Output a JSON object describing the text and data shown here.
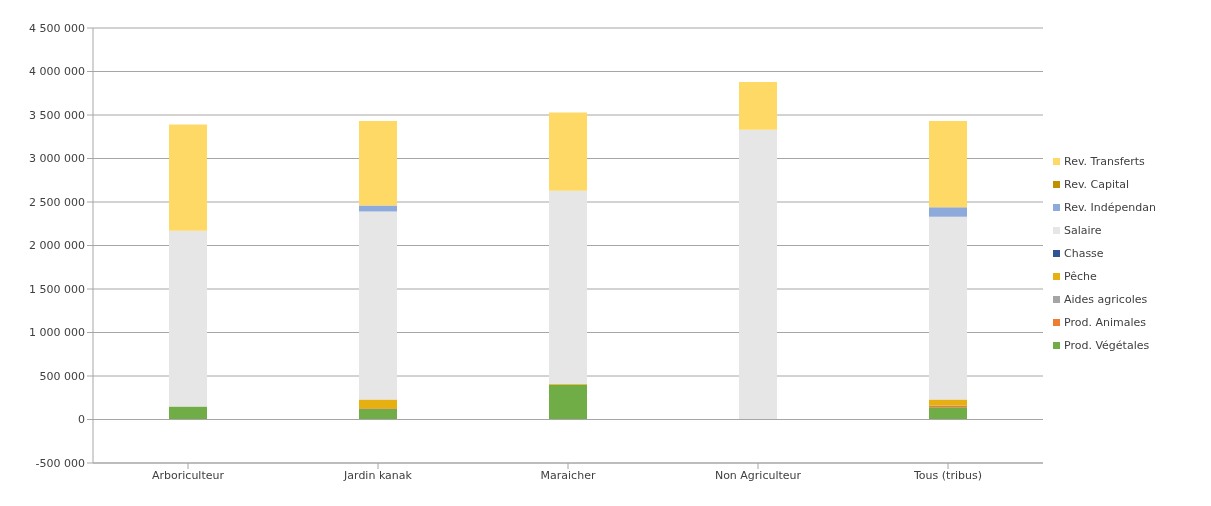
{
  "chart_data": {
    "type": "bar",
    "stacked": true,
    "categories": [
      "Arboriculteur",
      "Jardin kanak",
      "Maraicher",
      "Non Agriculteur",
      "Tous (tribus)"
    ],
    "series": [
      {
        "name": "Prod. Végétales",
        "color": "#70ad47",
        "values": [
          150000,
          120000,
          400000,
          0,
          140000
        ]
      },
      {
        "name": "Prod. Animales",
        "color": "#ed7d31",
        "values": [
          0,
          10000,
          0,
          0,
          20000
        ]
      },
      {
        "name": "Aides agricoles",
        "color": "#a5a5a5",
        "values": [
          0,
          0,
          0,
          0,
          0
        ]
      },
      {
        "name": "Pêche",
        "color": "#e6b012",
        "values": [
          0,
          100000,
          10000,
          0,
          70000
        ]
      },
      {
        "name": "Chasse",
        "color": "#2f5597",
        "values": [
          0,
          0,
          0,
          0,
          0
        ]
      },
      {
        "name": "Salaire",
        "color": "#e7e6e6",
        "values": [
          2020000,
          2160000,
          2220000,
          3330000,
          2100000
        ]
      },
      {
        "name": "Rev. Indépendan",
        "color": "#8eaadb",
        "values": [
          0,
          70000,
          0,
          0,
          110000
        ]
      },
      {
        "name": "Rev. Capital",
        "color": "#bf9000",
        "values": [
          0,
          0,
          0,
          0,
          0
        ]
      },
      {
        "name": "Rev. Transferts",
        "color": "#ffd966",
        "values": [
          1220000,
          970000,
          900000,
          550000,
          990000
        ]
      }
    ],
    "ylim": [
      -500000,
      4500000
    ],
    "yticks": [
      -500000,
      0,
      500000,
      1000000,
      1500000,
      2000000,
      2500000,
      3000000,
      3500000,
      4000000,
      4500000
    ],
    "grid": "y",
    "legend": "right"
  }
}
